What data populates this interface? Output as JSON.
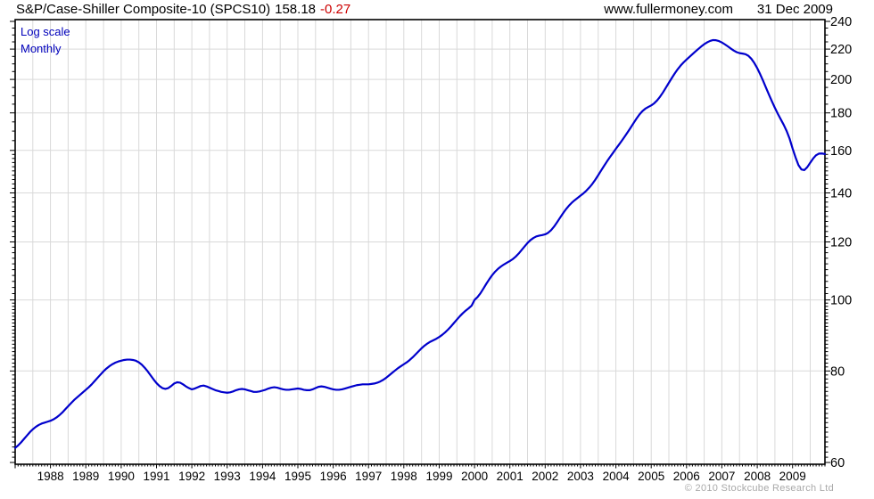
{
  "header": {
    "title": "S&P/Case-Shiller Composite-10 (SPCS10)",
    "last_value": "158.18",
    "change": "-0.27",
    "website": "www.fullermoney.com",
    "date": "31 Dec 2009"
  },
  "plot_annotations": {
    "scale_label": "Log scale",
    "frequency_label": "Monthly"
  },
  "footer": {
    "copyright": "© 2010 Stockcube Research Ltd"
  },
  "colors": {
    "line": "#0000CC",
    "change_negative": "#CC0000",
    "annotation_blue": "#0000BB",
    "grid": "#D9D9D9",
    "frame": "#000000",
    "footer_gray": "#A9A9A9"
  },
  "chart_data": {
    "type": "line",
    "title": "S&P/Case-Shiller Composite-10 (SPCS10)",
    "series_name": "SPCS10",
    "scale": "log",
    "frequency": "monthly",
    "start": "1987-01",
    "end": "2009-12",
    "last_value": 158.18,
    "last_change": -0.27,
    "ylim": [
      60,
      240
    ],
    "y_ticks": [
      60,
      80,
      100,
      120,
      140,
      160,
      180,
      200,
      220,
      240
    ],
    "x_tick_labels": [
      "1988",
      "1989",
      "1990",
      "1991",
      "1992",
      "1993",
      "1994",
      "1995",
      "1996",
      "1997",
      "1998",
      "1999",
      "2000",
      "2001",
      "2002",
      "2003",
      "2004",
      "2005",
      "2006",
      "2007",
      "2008",
      "2009"
    ],
    "grid": true,
    "legend_position": "none",
    "values": [
      62.8,
      63.3,
      63.9,
      64.6,
      65.3,
      66.0,
      66.6,
      67.1,
      67.5,
      67.8,
      68.0,
      68.2,
      68.4,
      68.7,
      69.1,
      69.6,
      70.2,
      70.9,
      71.6,
      72.3,
      73.0,
      73.6,
      74.2,
      74.8,
      75.4,
      76.0,
      76.7,
      77.5,
      78.3,
      79.1,
      79.9,
      80.6,
      81.2,
      81.7,
      82.1,
      82.4,
      82.6,
      82.8,
      82.9,
      82.9,
      82.8,
      82.6,
      82.2,
      81.6,
      80.8,
      79.9,
      78.9,
      77.9,
      77.0,
      76.3,
      75.8,
      75.6,
      75.8,
      76.3,
      76.9,
      77.2,
      77.1,
      76.7,
      76.2,
      75.8,
      75.5,
      75.7,
      76.0,
      76.3,
      76.4,
      76.2,
      75.9,
      75.6,
      75.3,
      75.1,
      74.9,
      74.8,
      74.7,
      74.8,
      75.0,
      75.3,
      75.5,
      75.6,
      75.5,
      75.3,
      75.1,
      74.9,
      74.9,
      75.0,
      75.2,
      75.4,
      75.7,
      75.9,
      76.0,
      75.9,
      75.7,
      75.5,
      75.4,
      75.4,
      75.5,
      75.6,
      75.7,
      75.6,
      75.4,
      75.3,
      75.3,
      75.5,
      75.8,
      76.1,
      76.2,
      76.1,
      75.9,
      75.7,
      75.5,
      75.4,
      75.4,
      75.5,
      75.7,
      75.9,
      76.1,
      76.3,
      76.5,
      76.6,
      76.7,
      76.7,
      76.7,
      76.8,
      76.9,
      77.1,
      77.4,
      77.8,
      78.3,
      78.9,
      79.5,
      80.1,
      80.7,
      81.2,
      81.7,
      82.2,
      82.8,
      83.5,
      84.3,
      85.1,
      85.9,
      86.6,
      87.2,
      87.7,
      88.1,
      88.5,
      89.0,
      89.6,
      90.3,
      91.1,
      92.0,
      93.0,
      94.0,
      95.0,
      95.9,
      96.7,
      97.4,
      98.2,
      100.0,
      100.9,
      102.1,
      103.6,
      105.2,
      106.7,
      108.1,
      109.3,
      110.3,
      111.1,
      111.8,
      112.4,
      113.0,
      113.7,
      114.6,
      115.7,
      117.0,
      118.3,
      119.6,
      120.7,
      121.5,
      122.1,
      122.4,
      122.6,
      122.9,
      123.5,
      124.5,
      125.9,
      127.6,
      129.4,
      131.2,
      132.9,
      134.4,
      135.7,
      136.8,
      137.8,
      138.8,
      139.8,
      141.0,
      142.4,
      144.0,
      145.9,
      148.0,
      150.2,
      152.4,
      154.6,
      156.7,
      158.7,
      160.8,
      162.8,
      164.9,
      167.1,
      169.4,
      171.8,
      174.3,
      176.8,
      179.1,
      181.0,
      182.4,
      183.4,
      184.3,
      185.5,
      187.2,
      189.4,
      192.0,
      194.9,
      197.9,
      200.9,
      203.8,
      206.5,
      208.9,
      211.0,
      212.9,
      214.7,
      216.5,
      218.3,
      220.1,
      221.8,
      223.4,
      224.7,
      225.7,
      226.3,
      226.2,
      225.6,
      224.6,
      223.3,
      221.9,
      220.4,
      219.0,
      217.9,
      217.2,
      216.9,
      216.5,
      215.4,
      213.4,
      210.6,
      207.2,
      203.3,
      199.1,
      194.8,
      190.6,
      186.6,
      182.9,
      179.5,
      176.4,
      173.4,
      170.0,
      166.0,
      161.0,
      156.6,
      152.8,
      150.7,
      150.4,
      151.8,
      153.9,
      156.0,
      157.6,
      158.4,
      158.45,
      158.18
    ]
  }
}
